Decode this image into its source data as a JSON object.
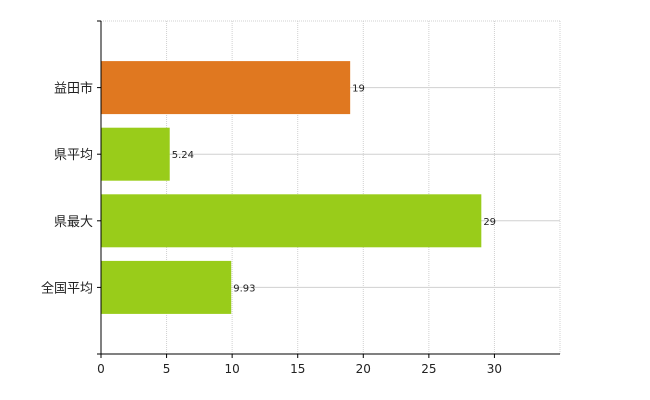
{
  "chart_data": {
    "type": "bar",
    "orientation": "horizontal",
    "categories": [
      "益田市",
      "県平均",
      "県最大",
      "全国平均"
    ],
    "values": [
      19,
      5.24,
      29,
      9.93
    ],
    "value_labels": [
      "19",
      "5.24",
      "29",
      "9.93"
    ],
    "bar_colors": [
      "#e07820",
      "#99cc1a",
      "#99cc1a",
      "#99cc1a"
    ],
    "title": "",
    "xlabel": "",
    "ylabel": "",
    "xlim": [
      0,
      35
    ],
    "xticks": [
      0,
      5,
      10,
      15,
      20,
      25,
      30
    ],
    "xtick_labels": [
      "0",
      "5",
      "10",
      "15",
      "20",
      "25",
      "30"
    ],
    "grid": true,
    "legend": "none"
  }
}
